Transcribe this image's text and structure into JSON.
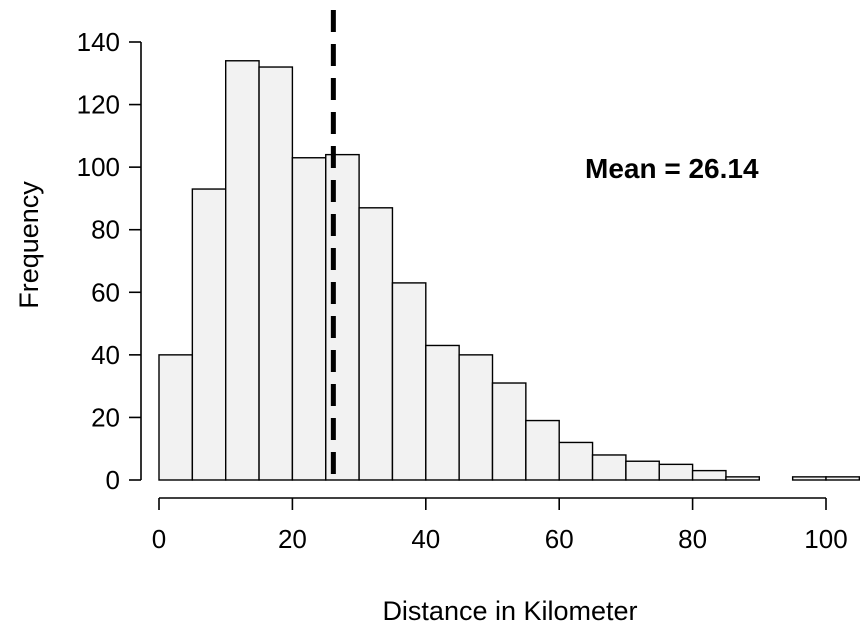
{
  "chart_data": {
    "type": "bar",
    "subtype": "histogram",
    "xlabel": "Distance in Kilometer",
    "ylabel": "Frequency",
    "bin_width": 5,
    "bins": [
      {
        "x0": 0,
        "x1": 5,
        "count": 40
      },
      {
        "x0": 5,
        "x1": 10,
        "count": 93
      },
      {
        "x0": 10,
        "x1": 15,
        "count": 134
      },
      {
        "x0": 15,
        "x1": 20,
        "count": 132
      },
      {
        "x0": 20,
        "x1": 25,
        "count": 103
      },
      {
        "x0": 25,
        "x1": 30,
        "count": 104
      },
      {
        "x0": 30,
        "x1": 35,
        "count": 87
      },
      {
        "x0": 35,
        "x1": 40,
        "count": 63
      },
      {
        "x0": 40,
        "x1": 45,
        "count": 43
      },
      {
        "x0": 45,
        "x1": 50,
        "count": 40
      },
      {
        "x0": 50,
        "x1": 55,
        "count": 31
      },
      {
        "x0": 55,
        "x1": 60,
        "count": 19
      },
      {
        "x0": 60,
        "x1": 65,
        "count": 12
      },
      {
        "x0": 65,
        "x1": 70,
        "count": 8
      },
      {
        "x0": 70,
        "x1": 75,
        "count": 6
      },
      {
        "x0": 75,
        "x1": 80,
        "count": 5
      },
      {
        "x0": 80,
        "x1": 85,
        "count": 3
      },
      {
        "x0": 85,
        "x1": 90,
        "count": 1
      },
      {
        "x0": 90,
        "x1": 95,
        "count": 0
      },
      {
        "x0": 95,
        "x1": 100,
        "count": 1
      },
      {
        "x0": 100,
        "x1": 105,
        "count": 1
      }
    ],
    "xlim": [
      0,
      105
    ],
    "ylim": [
      0,
      140
    ],
    "xticks": [
      0,
      20,
      40,
      60,
      80,
      100
    ],
    "yticks": [
      0,
      20,
      40,
      60,
      80,
      100,
      120,
      140
    ],
    "mean_value": 26.14,
    "annotation": "Mean = 26.14",
    "grid": false,
    "colors": {
      "bar_fill": "#f2f2f2",
      "bar_stroke": "#000000",
      "mean_line": "#000000"
    }
  }
}
